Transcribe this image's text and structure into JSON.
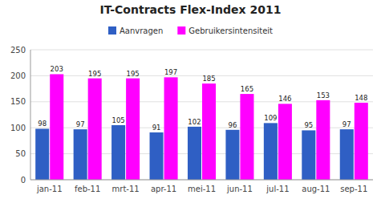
{
  "chart_data": {
    "type": "bar",
    "title": "IT-Contracts Flex-Index 2011",
    "categories": [
      "jan-11",
      "feb-11",
      "mrt-11",
      "apr-11",
      "mei-11",
      "jun-11",
      "jul-11",
      "aug-11",
      "sep-11"
    ],
    "series": [
      {
        "name": "Aanvragen",
        "color": "#2f5fc4",
        "values": [
          98,
          97,
          105,
          91,
          102,
          96,
          109,
          95,
          97
        ]
      },
      {
        "name": "Gebruikersintensiteit",
        "color": "#ff00ff",
        "values": [
          203,
          195,
          195,
          197,
          185,
          165,
          146,
          153,
          148
        ]
      }
    ],
    "ylim": [
      0,
      250
    ],
    "yticks": [
      0,
      50,
      100,
      150,
      200,
      250
    ],
    "grid": true,
    "legend": "top",
    "data_labels": true
  }
}
